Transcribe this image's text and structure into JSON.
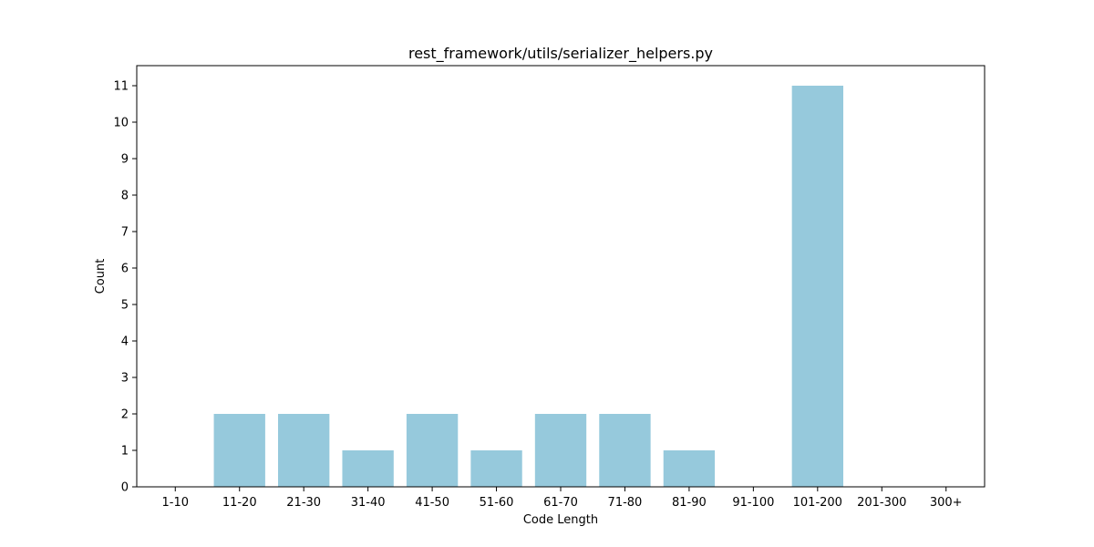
{
  "chart_data": {
    "type": "bar",
    "title": "rest_framework/utils/serializer_helpers.py",
    "xlabel": "Code Length",
    "ylabel": "Count",
    "categories": [
      "1-10",
      "11-20",
      "21-30",
      "31-40",
      "41-50",
      "51-60",
      "61-70",
      "71-80",
      "81-90",
      "91-100",
      "101-200",
      "201-300",
      "300+"
    ],
    "values": [
      0,
      2,
      2,
      1,
      2,
      1,
      2,
      2,
      1,
      0,
      11,
      0,
      0
    ],
    "ylim": [
      0,
      11.55
    ],
    "yticks": [
      "0",
      "1",
      "2",
      "3",
      "4",
      "5",
      "6",
      "7",
      "8",
      "9",
      "10",
      "11"
    ],
    "bar_color": "#96c9dc",
    "grid": false,
    "legend": "none"
  }
}
